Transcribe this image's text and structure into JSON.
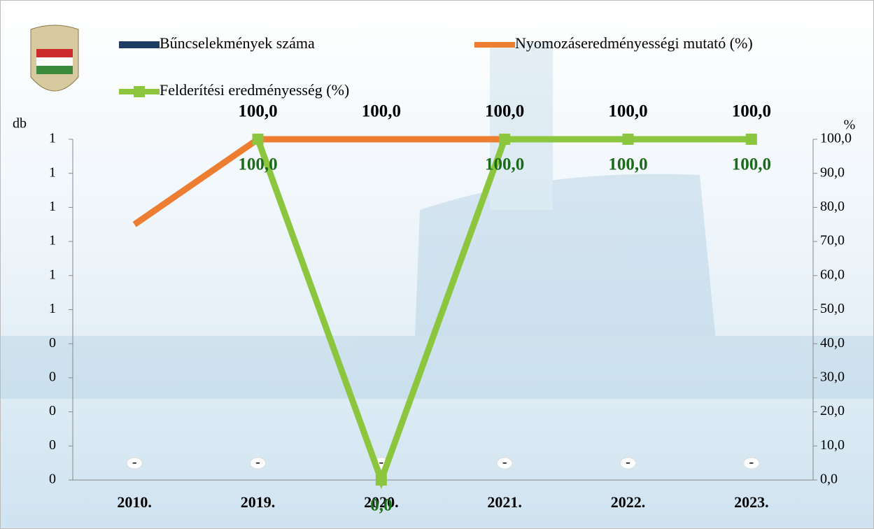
{
  "chart_data": {
    "type": "line",
    "y_label": "db",
    "y2_label": "%",
    "categories": [
      "2010.",
      "2019.",
      "2020.",
      "2021.",
      "2022.",
      "2023."
    ],
    "ylim": [
      0,
      1
    ],
    "yticks": [
      0,
      {
        "value": 0.1,
        "label": "0"
      },
      {
        "value": 0.2,
        "label": "0"
      },
      {
        "value": 0.3,
        "label": "0"
      },
      {
        "value": 0.4,
        "label": "0"
      },
      {
        "value": 0.5,
        "label": "1"
      },
      {
        "value": 0.6,
        "label": "1"
      },
      {
        "value": 0.7,
        "label": "1"
      },
      {
        "value": 0.8,
        "label": "1"
      },
      {
        "value": 0.9,
        "label": "1"
      },
      1
    ],
    "y2lim": [
      0,
      100
    ],
    "y2ticks": [
      {
        "value": 0,
        "label": "0,0"
      },
      {
        "value": 10,
        "label": "10,0"
      },
      {
        "value": 20,
        "label": "20,0"
      },
      {
        "value": 30,
        "label": "30,0"
      },
      {
        "value": 40,
        "label": "40,0"
      },
      {
        "value": 50,
        "label": "50,0"
      },
      {
        "value": 60,
        "label": "60,0"
      },
      {
        "value": 70,
        "label": "70,0"
      },
      {
        "value": 80,
        "label": "80,0"
      },
      {
        "value": 90,
        "label": "90,0"
      },
      {
        "value": 100,
        "label": "100,0"
      }
    ],
    "series": [
      {
        "name": "Bűncselekmények száma",
        "type": "bar",
        "color": "#1f3d63",
        "values": [
          0,
          0,
          0,
          0,
          0,
          0
        ],
        "value_labels": [
          "-",
          "-",
          "-",
          "-",
          "-",
          "-"
        ]
      },
      {
        "name": "Nyomozáseredményességi mutató (%)",
        "type": "line",
        "axis": "y2",
        "color": "#ed7d31",
        "label_color": "#000000",
        "values": [
          75,
          100,
          100,
          100,
          100,
          100
        ],
        "value_labels": [
          null,
          "100,0",
          "100,0",
          "100,0",
          "100,0",
          "100,0"
        ]
      },
      {
        "name": "Felderítési eredményesség (%)",
        "type": "line",
        "axis": "y2",
        "color": "#8cc63f",
        "label_color": "#1a6b1a",
        "marker": "square",
        "values": [
          null,
          100,
          0,
          100,
          100,
          100
        ],
        "value_labels": [
          null,
          "100,0",
          "0,0",
          "100,0",
          "100,0",
          "100,0"
        ]
      }
    ]
  }
}
